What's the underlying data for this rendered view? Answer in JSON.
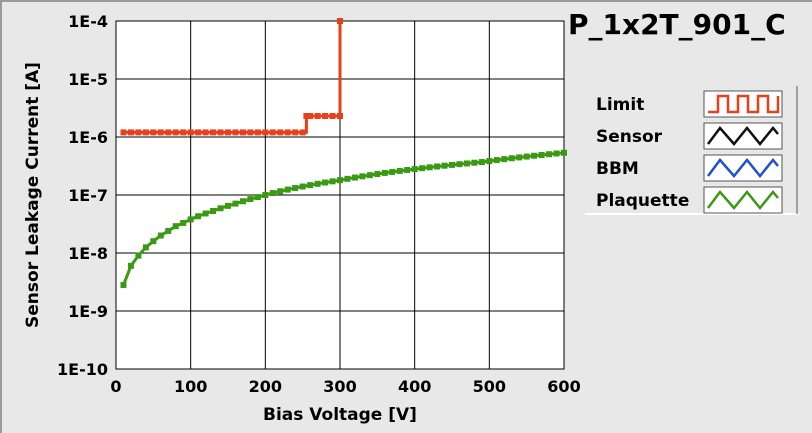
{
  "chart_data": {
    "type": "line",
    "title": "P_1x2T_901_C",
    "xlabel": "Bias Voltage [V]",
    "ylabel": "Sensor Leakage Current [A]",
    "xlim": [
      0,
      600
    ],
    "ylim": [
      1e-10,
      0.0001
    ],
    "yscale": "log",
    "grid": true,
    "legend_position": "right",
    "x_ticks": [
      "0",
      "100",
      "200",
      "300",
      "400",
      "500",
      "600"
    ],
    "y_ticks": [
      "1E-10",
      "1E-9",
      "1E-8",
      "1E-7",
      "1E-6",
      "1E-5",
      "1E-4"
    ],
    "series": [
      {
        "name": "Limit",
        "color": "#e8401c",
        "marker": "square",
        "step": true,
        "x": [
          10,
          20,
          30,
          40,
          50,
          60,
          70,
          80,
          90,
          100,
          110,
          120,
          130,
          140,
          150,
          160,
          170,
          180,
          190,
          200,
          210,
          220,
          230,
          240,
          250,
          255,
          260,
          270,
          280,
          290,
          300,
          300
        ],
        "y": [
          1.2e-06,
          1.2e-06,
          1.2e-06,
          1.2e-06,
          1.2e-06,
          1.2e-06,
          1.2e-06,
          1.2e-06,
          1.2e-06,
          1.2e-06,
          1.2e-06,
          1.2e-06,
          1.2e-06,
          1.2e-06,
          1.2e-06,
          1.2e-06,
          1.2e-06,
          1.2e-06,
          1.2e-06,
          1.2e-06,
          1.2e-06,
          1.2e-06,
          1.2e-06,
          1.2e-06,
          1.2e-06,
          2.3e-06,
          2.3e-06,
          2.3e-06,
          2.3e-06,
          2.3e-06,
          2.3e-06,
          0.0001
        ]
      },
      {
        "name": "Sensor",
        "color": "#111111",
        "marker": "square",
        "x": [],
        "y": []
      },
      {
        "name": "BBM",
        "color": "#1f4fd6",
        "marker": "square",
        "x": [],
        "y": []
      },
      {
        "name": "Plaquette",
        "color": "#3a9a14",
        "marker": "square",
        "x": [
          10,
          20,
          30,
          40,
          50,
          60,
          70,
          80,
          90,
          100,
          110,
          120,
          130,
          140,
          150,
          160,
          170,
          180,
          190,
          200,
          210,
          220,
          230,
          240,
          250,
          260,
          270,
          280,
          290,
          300,
          310,
          320,
          330,
          340,
          350,
          360,
          370,
          380,
          390,
          400,
          410,
          420,
          430,
          440,
          450,
          460,
          470,
          480,
          490,
          500,
          510,
          520,
          530,
          540,
          550,
          560,
          570,
          580,
          590,
          600
        ],
        "y": [
          2.8e-09,
          6e-09,
          9e-09,
          1.25e-08,
          1.6e-08,
          2e-08,
          2.4e-08,
          2.9e-08,
          3.3e-08,
          3.8e-08,
          4.3e-08,
          4.8e-08,
          5.3e-08,
          5.9e-08,
          6.5e-08,
          7.1e-08,
          7.8e-08,
          8.5e-08,
          9.2e-08,
          1e-07,
          1.08e-07,
          1.16e-07,
          1.24e-07,
          1.32e-07,
          1.4e-07,
          1.48e-07,
          1.56e-07,
          1.64e-07,
          1.72e-07,
          1.8e-07,
          1.9e-07,
          2e-07,
          2.1e-07,
          2.2e-07,
          2.3e-07,
          2.4e-07,
          2.5e-07,
          2.6e-07,
          2.7e-07,
          2.8e-07,
          2.9e-07,
          3e-07,
          3.1e-07,
          3.2e-07,
          3.3e-07,
          3.4e-07,
          3.5e-07,
          3.6e-07,
          3.7e-07,
          3.85e-07,
          4e-07,
          4.15e-07,
          4.3e-07,
          4.45e-07,
          4.6e-07,
          4.75e-07,
          4.9e-07,
          5.05e-07,
          5.2e-07,
          5.35e-07
        ]
      }
    ]
  }
}
